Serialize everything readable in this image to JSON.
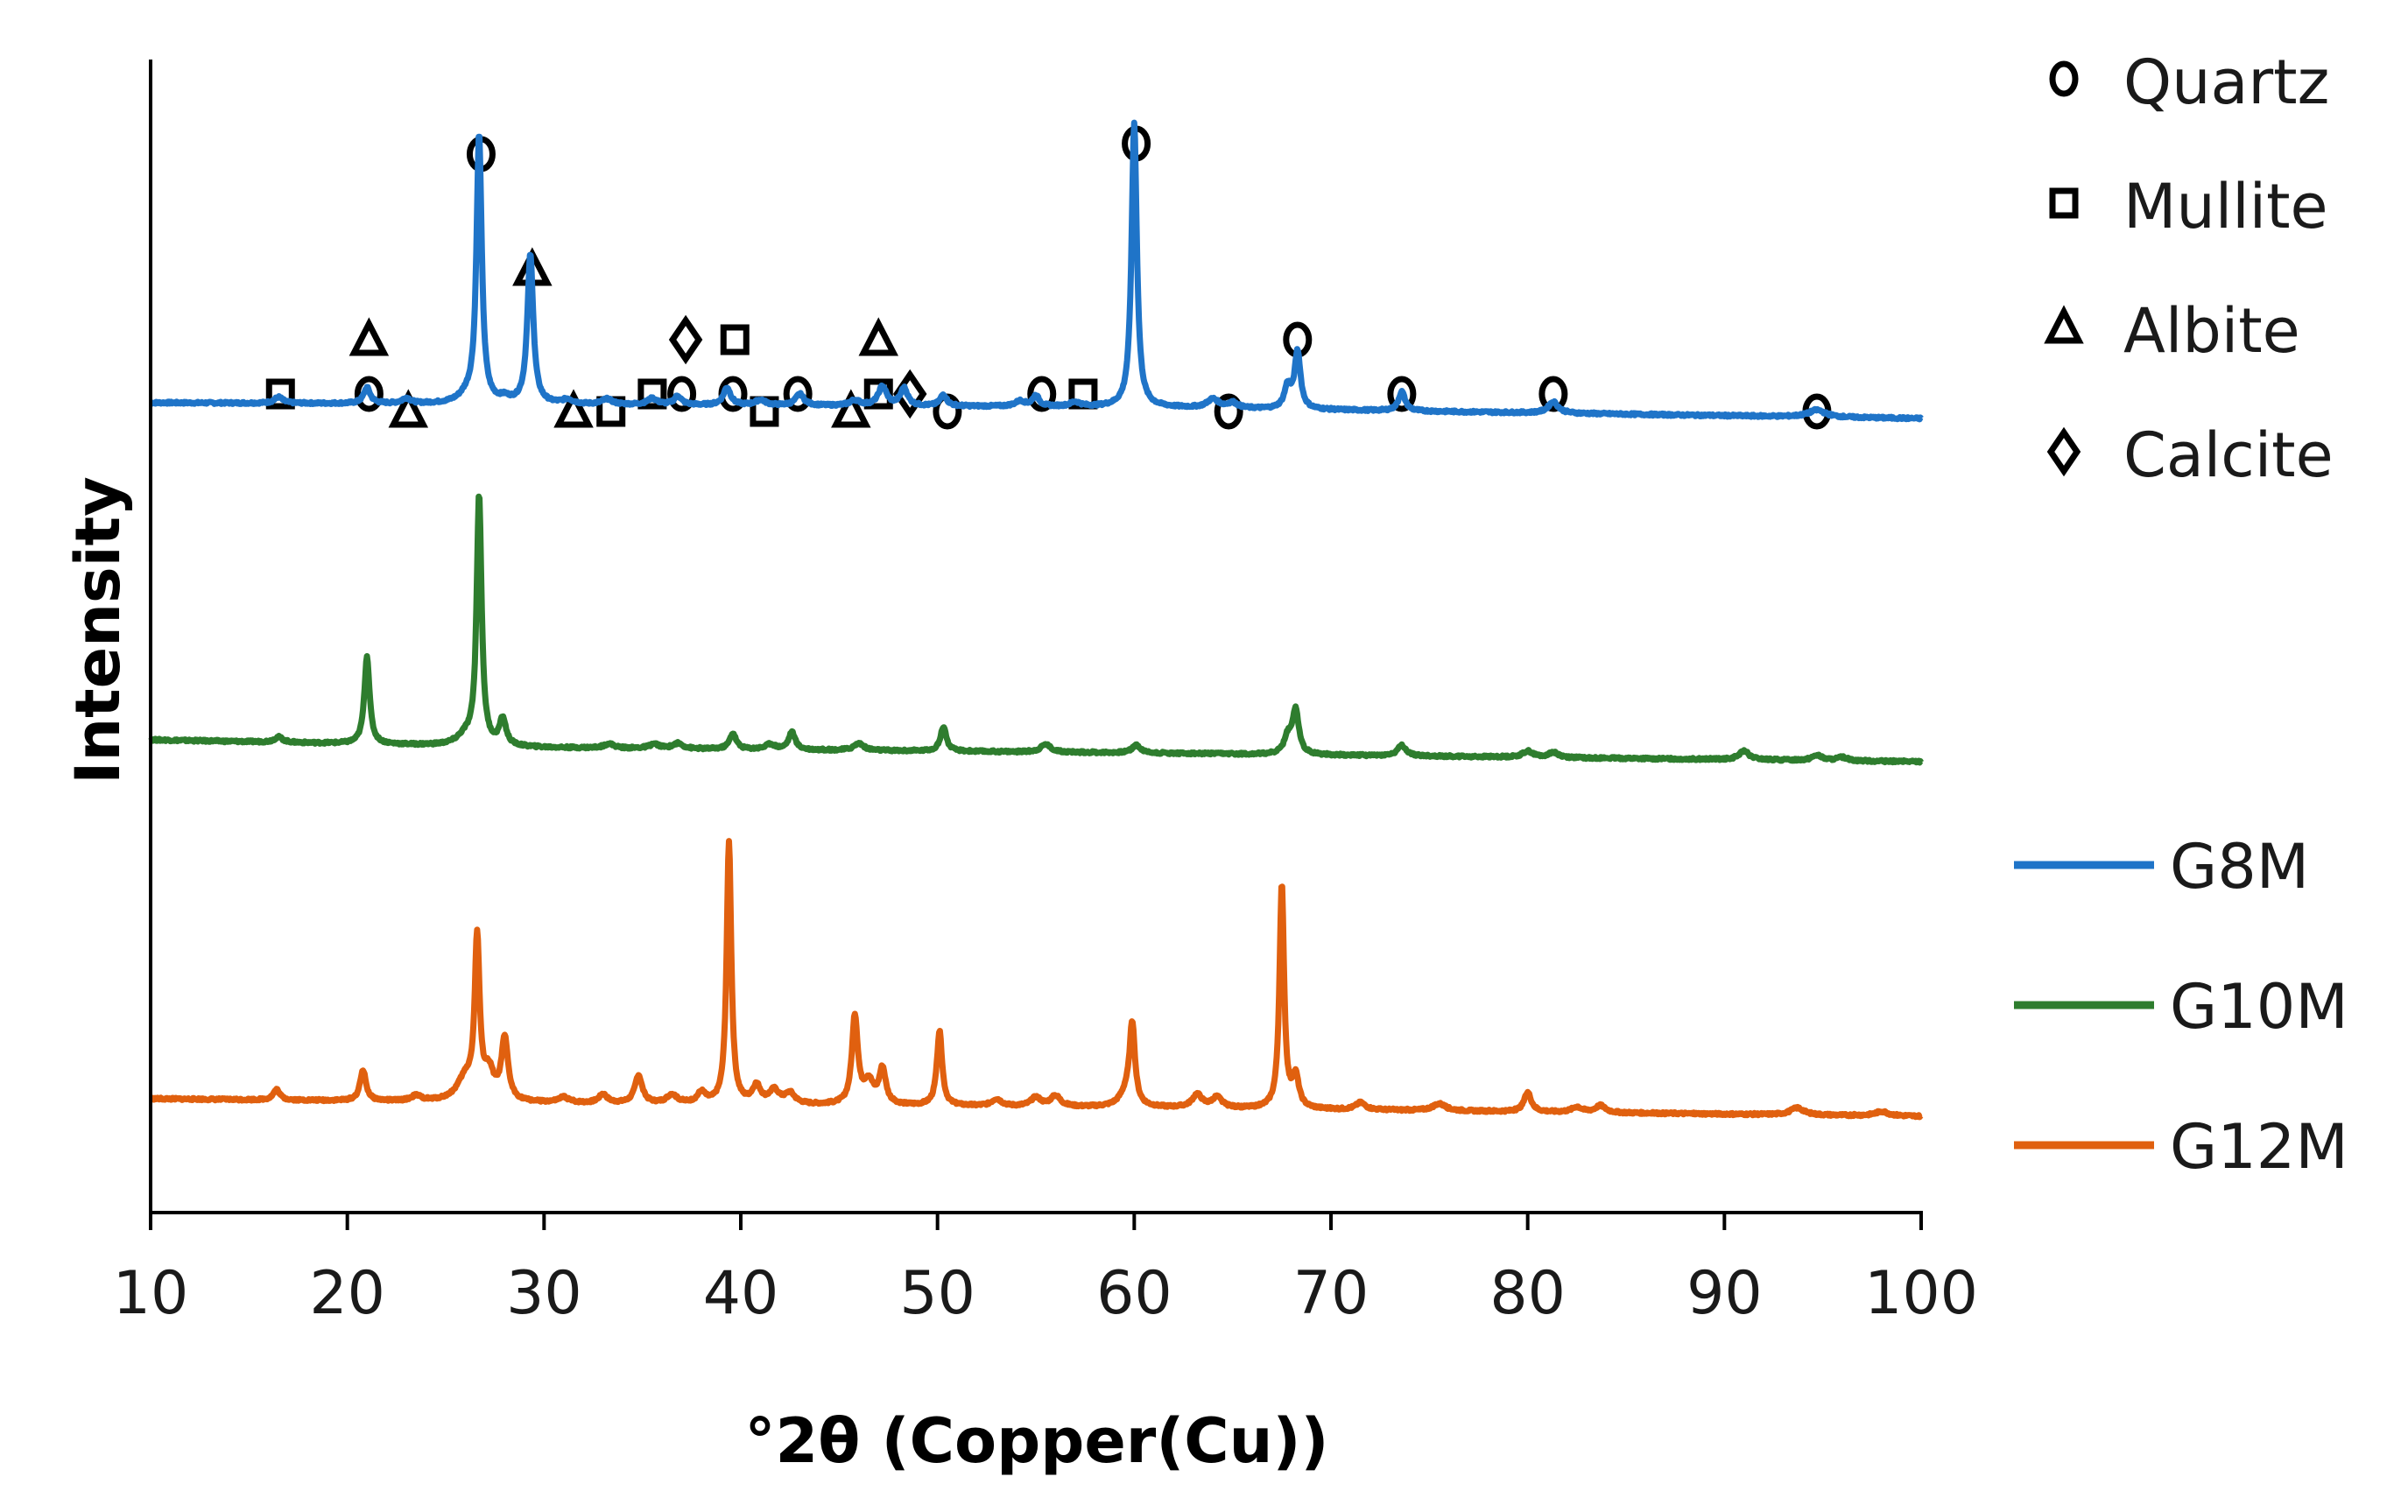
{
  "chart_data": {
    "type": "line",
    "title": "",
    "xlabel": "°2θ (Copper(Cu))",
    "ylabel": "Intensity",
    "xlim": [
      10,
      100
    ],
    "xticks": [
      "10",
      "20",
      "30",
      "40",
      "50",
      "60",
      "70",
      "80",
      "90",
      "100"
    ],
    "y_tick_labels": "none",
    "grid": false,
    "legend_position": "right",
    "series": [
      {
        "name": "G8M",
        "color": "#1f74c8",
        "baseline": [
          [
            10,
            60
          ],
          [
            30,
            58
          ],
          [
            60,
            55
          ],
          [
            100,
            42
          ]
        ],
        "peaks": [
          [
            16.5,
            7,
            0.25
          ],
          [
            21.0,
            18,
            0.2
          ],
          [
            23.0,
            6,
            0.25
          ],
          [
            26.1,
            8,
            0.5
          ],
          [
            26.7,
            305,
            0.16
          ],
          [
            28.0,
            5,
            0.3
          ],
          [
            29.3,
            170,
            0.18
          ],
          [
            31.2,
            5,
            0.3
          ],
          [
            33.2,
            6,
            0.3
          ],
          [
            35.5,
            7,
            0.3
          ],
          [
            36.8,
            10,
            0.22
          ],
          [
            39.3,
            20,
            0.22
          ],
          [
            41.0,
            6,
            0.3
          ],
          [
            43.0,
            13,
            0.25
          ],
          [
            45.8,
            6,
            0.3
          ],
          [
            47.2,
            22,
            0.25
          ],
          [
            48.3,
            20,
            0.22
          ],
          [
            50.3,
            13,
            0.2
          ],
          [
            54.2,
            6,
            0.3
          ],
          [
            55.0,
            12,
            0.2
          ],
          [
            57.0,
            5,
            0.3
          ],
          [
            60.0,
            325,
            0.16
          ],
          [
            64.0,
            10,
            0.35
          ],
          [
            65.0,
            6,
            0.3
          ],
          [
            67.8,
            25,
            0.2
          ],
          [
            68.3,
            65,
            0.18
          ],
          [
            73.6,
            22,
            0.2
          ],
          [
            81.3,
            13,
            0.3
          ],
          [
            94.7,
            8,
            0.5
          ]
        ]
      },
      {
        "name": "G10M",
        "color": "#2e7d2e",
        "baseline": [
          [
            10,
            95
          ],
          [
            30,
            86
          ],
          [
            60,
            80
          ],
          [
            100,
            70
          ]
        ],
        "peaks": [
          [
            16.5,
            6,
            0.25
          ],
          [
            21.0,
            100,
            0.16
          ],
          [
            26.0,
            10,
            0.5
          ],
          [
            26.7,
            285,
            0.15
          ],
          [
            27.9,
            30,
            0.2
          ],
          [
            33.3,
            5,
            0.3
          ],
          [
            35.6,
            5,
            0.3
          ],
          [
            36.8,
            6,
            0.3
          ],
          [
            39.6,
            18,
            0.2
          ],
          [
            41.5,
            6,
            0.3
          ],
          [
            42.6,
            20,
            0.2
          ],
          [
            46.0,
            8,
            0.3
          ],
          [
            50.3,
            28,
            0.18
          ],
          [
            55.5,
            9,
            0.3
          ],
          [
            60.1,
            9,
            0.25
          ],
          [
            67.8,
            18,
            0.22
          ],
          [
            68.2,
            50,
            0.2
          ],
          [
            73.6,
            12,
            0.25
          ],
          [
            80.0,
            7,
            0.3
          ],
          [
            81.3,
            6,
            0.3
          ],
          [
            91.0,
            10,
            0.3
          ],
          [
            94.7,
            6,
            0.3
          ],
          [
            96.0,
            4,
            0.3
          ]
        ]
      },
      {
        "name": "G12M",
        "color": "#e0600f",
        "baseline": [
          [
            10,
            65
          ],
          [
            30,
            60
          ],
          [
            60,
            55
          ],
          [
            100,
            45
          ]
        ],
        "peaks": [
          [
            16.4,
            12,
            0.2
          ],
          [
            20.8,
            35,
            0.18
          ],
          [
            23.5,
            6,
            0.3
          ],
          [
            26.0,
            25,
            0.5
          ],
          [
            26.6,
            180,
            0.15
          ],
          [
            27.2,
            30,
            0.3
          ],
          [
            28.0,
            70,
            0.2
          ],
          [
            31.0,
            6,
            0.3
          ],
          [
            33.0,
            10,
            0.25
          ],
          [
            34.8,
            32,
            0.22
          ],
          [
            36.5,
            10,
            0.3
          ],
          [
            38.0,
            12,
            0.25
          ],
          [
            39.4,
            300,
            0.14
          ],
          [
            40.8,
            20,
            0.25
          ],
          [
            41.7,
            15,
            0.3
          ],
          [
            42.5,
            12,
            0.3
          ],
          [
            45.8,
            100,
            0.18
          ],
          [
            46.5,
            25,
            0.3
          ],
          [
            47.2,
            40,
            0.2
          ],
          [
            50.1,
            85,
            0.16
          ],
          [
            53.0,
            8,
            0.3
          ],
          [
            55.0,
            10,
            0.3
          ],
          [
            56.0,
            12,
            0.3
          ],
          [
            59.6,
            15,
            0.4
          ],
          [
            59.9,
            90,
            0.16
          ],
          [
            63.2,
            15,
            0.3
          ],
          [
            64.2,
            12,
            0.3
          ],
          [
            67.5,
            255,
            0.14
          ],
          [
            68.2,
            35,
            0.2
          ],
          [
            71.5,
            8,
            0.3
          ],
          [
            75.5,
            8,
            0.4
          ],
          [
            80.0,
            22,
            0.22
          ],
          [
            82.5,
            6,
            0.3
          ],
          [
            83.7,
            8,
            0.3
          ],
          [
            93.7,
            8,
            0.4
          ],
          [
            98.0,
            5,
            0.4
          ]
        ]
      }
    ],
    "annotations": [
      {
        "phase": "Mullite",
        "x": 16.6,
        "level": 1
      },
      {
        "phase": "Quartz",
        "x": 21.1,
        "level": 1
      },
      {
        "phase": "Albite",
        "x": 21.1,
        "level": 2
      },
      {
        "phase": "Albite",
        "x": 23.1,
        "level": 0
      },
      {
        "phase": "Quartz",
        "x": 26.8,
        "level": 4
      },
      {
        "phase": "Albite",
        "x": 29.4,
        "level": 3
      },
      {
        "phase": "Albite",
        "x": 31.5,
        "level": 0
      },
      {
        "phase": "Mullite",
        "x": 33.4,
        "level": 0
      },
      {
        "phase": "Mullite",
        "x": 35.5,
        "level": 1
      },
      {
        "phase": "Quartz",
        "x": 37.0,
        "level": 1
      },
      {
        "phase": "Calcite",
        "x": 37.2,
        "level": 2
      },
      {
        "phase": "Mullite",
        "x": 39.7,
        "level": 2
      },
      {
        "phase": "Quartz",
        "x": 39.6,
        "level": 1
      },
      {
        "phase": "Mullite",
        "x": 41.2,
        "level": 0
      },
      {
        "phase": "Quartz",
        "x": 42.9,
        "level": 1
      },
      {
        "phase": "Albite",
        "x": 45.6,
        "level": 0
      },
      {
        "phase": "Albite",
        "x": 47.0,
        "level": 2
      },
      {
        "phase": "Mullite",
        "x": 47.0,
        "level": 1
      },
      {
        "phase": "Calcite",
        "x": 48.6,
        "level": 1
      },
      {
        "phase": "Quartz",
        "x": 50.5,
        "level": 0
      },
      {
        "phase": "Quartz",
        "x": 55.3,
        "level": 1
      },
      {
        "phase": "Mullite",
        "x": 57.4,
        "level": 1
      },
      {
        "phase": "Quartz",
        "x": 60.1,
        "level": 5
      },
      {
        "phase": "Quartz",
        "x": 64.8,
        "level": 0
      },
      {
        "phase": "Quartz",
        "x": 68.3,
        "level": 2
      },
      {
        "phase": "Quartz",
        "x": 73.6,
        "level": 1
      },
      {
        "phase": "Quartz",
        "x": 81.3,
        "level": 1
      },
      {
        "phase": "Quartz",
        "x": 94.7,
        "level": 0
      }
    ],
    "phase_legend": [
      {
        "symbol": "circle",
        "label": "Quartz"
      },
      {
        "symbol": "square",
        "label": "Mullite"
      },
      {
        "symbol": "triangle",
        "label": "Albite"
      },
      {
        "symbol": "diamond",
        "label": "Calcite"
      }
    ]
  }
}
